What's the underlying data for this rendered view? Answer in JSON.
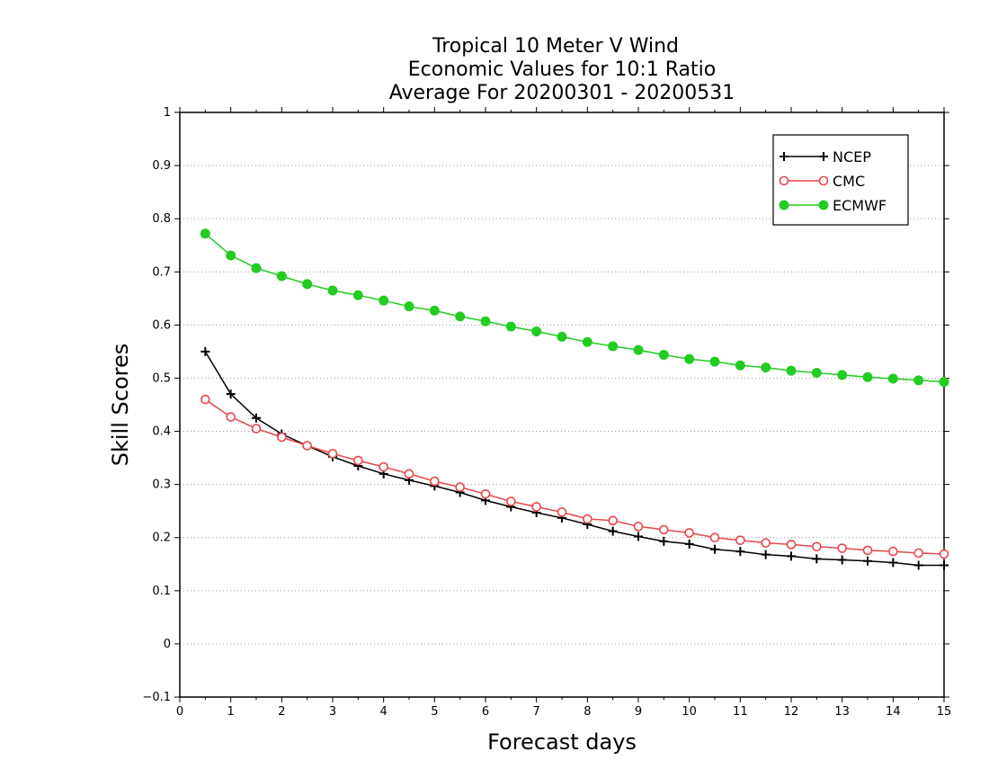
{
  "chart_data": {
    "type": "line",
    "title_lines": [
      "Tropical 10 Meter V Wind",
      "Economic Values for 10:1 Ratio",
      "Average For 20200301 - 20200531"
    ],
    "xlabel": "Forecast days",
    "ylabel": "Skill Scores",
    "xlim": [
      0,
      15
    ],
    "ylim": [
      -0.1,
      1
    ],
    "x_ticks": [
      "0",
      "1",
      "2",
      "3",
      "4",
      "5",
      "6",
      "7",
      "8",
      "9",
      "10",
      "11",
      "12",
      "13",
      "14",
      "15"
    ],
    "y_ticks": [
      "−0.1",
      "0",
      "0.1",
      "0.2",
      "0.3",
      "0.4",
      "0.5",
      "0.6",
      "0.7",
      "0.8",
      "0.9",
      "1"
    ],
    "y_grid": true,
    "legend_position": "top-right",
    "x": [
      0.5,
      1,
      1.5,
      2,
      2.5,
      3,
      3.5,
      4,
      4.5,
      5,
      5.5,
      6,
      6.5,
      7,
      7.5,
      8,
      8.5,
      9,
      9.5,
      10,
      10.5,
      11,
      11.5,
      12,
      12.5,
      13,
      13.5,
      14,
      14.5,
      15
    ],
    "series": [
      {
        "name": "NCEP",
        "color": "#000000",
        "marker": "plus",
        "values": [
          0.55,
          0.47,
          0.425,
          0.395,
          0.373,
          0.352,
          0.335,
          0.32,
          0.308,
          0.297,
          0.285,
          0.27,
          0.258,
          0.247,
          0.237,
          0.225,
          0.212,
          0.202,
          0.193,
          0.188,
          0.178,
          0.174,
          0.168,
          0.165,
          0.16,
          0.158,
          0.156,
          0.153,
          0.148,
          0.148
        ]
      },
      {
        "name": "CMC",
        "color": "#e8454b",
        "marker": "open-circle",
        "values": [
          0.46,
          0.427,
          0.405,
          0.389,
          0.373,
          0.358,
          0.345,
          0.333,
          0.32,
          0.306,
          0.295,
          0.282,
          0.268,
          0.258,
          0.248,
          0.235,
          0.232,
          0.221,
          0.215,
          0.209,
          0.2,
          0.195,
          0.19,
          0.187,
          0.183,
          0.18,
          0.176,
          0.174,
          0.171,
          0.169
        ]
      },
      {
        "name": "ECMWF",
        "color": "#22cc22",
        "marker": "filled-circle",
        "values": [
          0.772,
          0.731,
          0.707,
          0.692,
          0.677,
          0.665,
          0.656,
          0.646,
          0.635,
          0.627,
          0.616,
          0.607,
          0.597,
          0.588,
          0.578,
          0.568,
          0.56,
          0.553,
          0.544,
          0.536,
          0.531,
          0.524,
          0.52,
          0.514,
          0.51,
          0.506,
          0.502,
          0.499,
          0.496,
          0.493
        ]
      }
    ]
  }
}
